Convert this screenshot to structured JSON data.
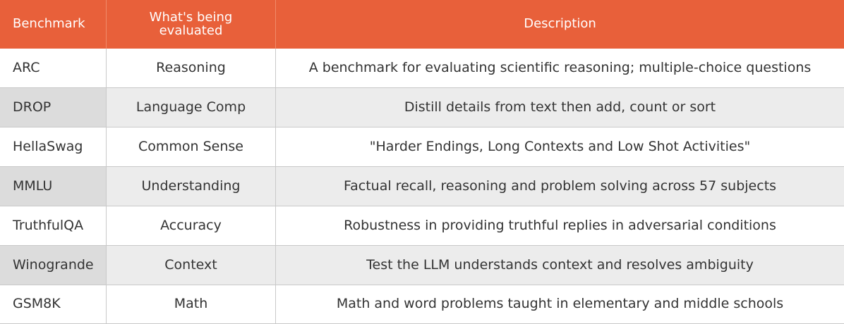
{
  "header": {
    "benchmark": "Benchmark",
    "evaluated_line1": "What's being",
    "evaluated_line2": "evaluated",
    "description": "Description"
  },
  "rows": [
    {
      "benchmark": "ARC",
      "evaluated": "Reasoning",
      "description": "A benchmark for evaluating scientific reasoning; multiple-choice questions"
    },
    {
      "benchmark": "DROP",
      "evaluated": "Language Comp",
      "description": "Distill details from text then add, count or sort"
    },
    {
      "benchmark": "HellaSwag",
      "evaluated": "Common Sense",
      "description": "\"Harder Endings, Long Contexts and Low Shot Activities\""
    },
    {
      "benchmark": "MMLU",
      "evaluated": "Understanding",
      "description": "Factual recall, reasoning and problem solving across 57 subjects"
    },
    {
      "benchmark": "TruthfulQA",
      "evaluated": "Accuracy",
      "description": "Robustness in providing truthful replies in adversarial conditions"
    },
    {
      "benchmark": "Winogrande",
      "evaluated": "Context",
      "description": "Test the LLM understands context and resolves ambiguity"
    },
    {
      "benchmark": "GSM8K",
      "evaluated": "Math",
      "description": "Math and word problems taught in elementary and middle schools"
    }
  ],
  "colors": {
    "header_bg": "#e8603a",
    "stripe_first_col": "#dcdcdc",
    "stripe_other_cols": "#ececec"
  }
}
